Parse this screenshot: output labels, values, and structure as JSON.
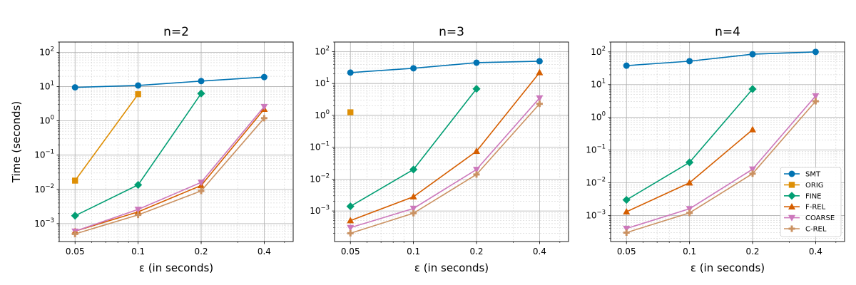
{
  "figure": {
    "ylabel": "Time (seconds)",
    "xlabel": "ε (in seconds)"
  },
  "colors": {
    "SMT": "#0173b2",
    "ORIG": "#de8f05",
    "FINE": "#029e73",
    "F-REL": "#d55e00",
    "COARSE": "#cc78bc",
    "C-REL": "#ca9161"
  },
  "legend": {
    "panel": 2,
    "placement": "lower-right",
    "entries": [
      "SMT",
      "ORIG",
      "FINE",
      "F-REL",
      "COARSE",
      "C-REL"
    ]
  },
  "chart_data": [
    {
      "type": "line",
      "title": "n=2",
      "xlabel": "ε (in seconds)",
      "ylabel": "Time (seconds)",
      "xscale": "log",
      "yscale": "log",
      "xlim": [
        0.042,
        0.55
      ],
      "ylim": [
        0.0003,
        200
      ],
      "xticks": [
        "0.05",
        "0.1",
        "0.2",
        "0.4"
      ],
      "yticks": [
        "10^-3",
        "10^-2",
        "10^-1",
        "10^0",
        "10^1",
        "10^2"
      ],
      "grid": true,
      "series": [
        {
          "name": "SMT",
          "marker": "circle",
          "x": [
            0.05,
            0.1,
            0.2,
            0.4
          ],
          "y": [
            9.5,
            10.8,
            14.5,
            19
          ]
        },
        {
          "name": "ORIG",
          "marker": "square",
          "x": [
            0.05,
            0.1
          ],
          "y": [
            0.018,
            6
          ]
        },
        {
          "name": "FINE",
          "marker": "diamond",
          "x": [
            0.05,
            0.1,
            0.2
          ],
          "y": [
            0.0017,
            0.0135,
            6.3
          ]
        },
        {
          "name": "F-REL",
          "marker": "triangle-up",
          "x": [
            0.05,
            0.1,
            0.2,
            0.4
          ],
          "y": [
            0.0006,
            0.0022,
            0.013,
            2.2
          ]
        },
        {
          "name": "COARSE",
          "marker": "triangle-down",
          "x": [
            0.05,
            0.1,
            0.2,
            0.4
          ],
          "y": [
            0.0006,
            0.0026,
            0.016,
            2.6
          ]
        },
        {
          "name": "C-REL",
          "marker": "plus",
          "x": [
            0.05,
            0.1,
            0.2,
            0.4
          ],
          "y": [
            0.0005,
            0.0018,
            0.009,
            1.2
          ]
        }
      ]
    },
    {
      "type": "line",
      "title": "n=3",
      "xlabel": "ε (in seconds)",
      "ylabel": "",
      "xscale": "log",
      "yscale": "log",
      "xlim": [
        0.042,
        0.55
      ],
      "ylim": [
        0.00011,
        200
      ],
      "xticks": [
        "0.05",
        "0.1",
        "0.2",
        "0.4"
      ],
      "yticks": [
        "10^-3",
        "10^-2",
        "10^-1",
        "10^0",
        "10^1",
        "10^2"
      ],
      "grid": true,
      "series": [
        {
          "name": "SMT",
          "marker": "circle",
          "x": [
            0.05,
            0.1,
            0.2,
            0.4
          ],
          "y": [
            22,
            30,
            45,
            50
          ]
        },
        {
          "name": "ORIG",
          "marker": "square",
          "x": [
            0.05
          ],
          "y": [
            1.25
          ]
        },
        {
          "name": "FINE",
          "marker": "diamond",
          "x": [
            0.05,
            0.1,
            0.2
          ],
          "y": [
            0.0014,
            0.02,
            6.8
          ]
        },
        {
          "name": "F-REL",
          "marker": "triangle-up",
          "x": [
            0.05,
            0.1,
            0.2,
            0.4
          ],
          "y": [
            0.0005,
            0.0028,
            0.075,
            22
          ]
        },
        {
          "name": "COARSE",
          "marker": "triangle-down",
          "x": [
            0.05,
            0.1,
            0.2,
            0.4
          ],
          "y": [
            0.0003,
            0.0012,
            0.02,
            3.5
          ]
        },
        {
          "name": "C-REL",
          "marker": "plus",
          "x": [
            0.05,
            0.1,
            0.2,
            0.4
          ],
          "y": [
            0.0002,
            0.00085,
            0.014,
            2.3
          ]
        }
      ]
    },
    {
      "type": "line",
      "title": "n=4",
      "xlabel": "ε (in seconds)",
      "ylabel": "",
      "xscale": "log",
      "yscale": "log",
      "xlim": [
        0.042,
        0.55
      ],
      "ylim": [
        0.00016,
        200
      ],
      "xticks": [
        "0.05",
        "0.1",
        "0.2",
        "0.4"
      ],
      "yticks": [
        "10^-3",
        "10^-2",
        "10^-1",
        "10^0",
        "10^1",
        "10^2"
      ],
      "grid": true,
      "series": [
        {
          "name": "SMT",
          "marker": "circle",
          "x": [
            0.05,
            0.1,
            0.2,
            0.4
          ],
          "y": [
            38,
            52,
            85,
            100
          ]
        },
        {
          "name": "FINE",
          "marker": "diamond",
          "x": [
            0.05,
            0.1,
            0.2
          ],
          "y": [
            0.003,
            0.042,
            7.3
          ]
        },
        {
          "name": "F-REL",
          "marker": "triangle-up",
          "x": [
            0.05,
            0.1,
            0.2
          ],
          "y": [
            0.0013,
            0.01,
            0.42
          ]
        },
        {
          "name": "COARSE",
          "marker": "triangle-down",
          "x": [
            0.05,
            0.1,
            0.2,
            0.4
          ],
          "y": [
            0.0004,
            0.0016,
            0.026,
            4.5
          ]
        },
        {
          "name": "C-REL",
          "marker": "plus",
          "x": [
            0.05,
            0.1,
            0.2,
            0.4
          ],
          "y": [
            0.0003,
            0.0012,
            0.019,
            3.1
          ]
        }
      ]
    }
  ]
}
